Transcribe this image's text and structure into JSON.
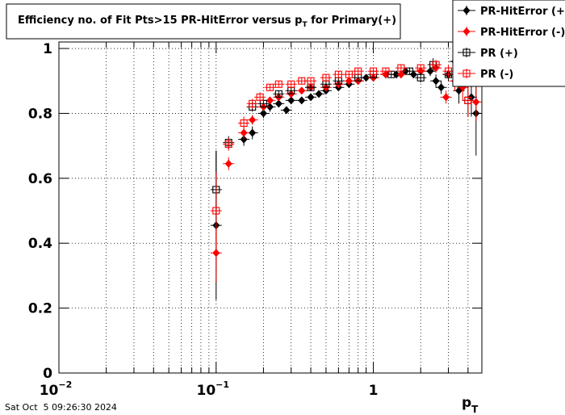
{
  "chart_data": {
    "type": "scatter",
    "title": "Efficiency no. of Fit Pts>15 PR-HitError versus p",
    "title_sub": "T",
    "title_end": " for Primary(+)",
    "x_label": "p",
    "x_label_sub": "T",
    "timestamp": "Sat Oct  5 09:26:30 2024",
    "xscale": "log",
    "xlim": [
      0.01,
      4.9
    ],
    "ylim": [
      0,
      1.02
    ],
    "xticks": [
      {
        "value": 0.01,
        "label": "10",
        "sup": "−2"
      },
      {
        "value": 0.1,
        "label": "10",
        "sup": "−1"
      },
      1
    ],
    "xminor": [
      0.02,
      0.03,
      0.04,
      0.05,
      0.06,
      0.07,
      0.08,
      0.09,
      0.2,
      0.3,
      0.4,
      0.5,
      0.6,
      0.7,
      0.8,
      0.9,
      2,
      3,
      4
    ],
    "yticks": [
      0,
      0.2,
      0.4,
      0.6,
      0.8,
      1
    ],
    "grid": true,
    "legend": "top-right",
    "series": [
      {
        "name": "PR-HitError (+)",
        "color": "#000000",
        "marker": "diamond",
        "x": [
          0.1,
          0.15,
          0.17,
          0.2,
          0.22,
          0.25,
          0.28,
          0.3,
          0.35,
          0.4,
          0.45,
          0.5,
          0.6,
          0.7,
          0.8,
          0.9,
          1.0,
          1.2,
          1.4,
          1.6,
          1.8,
          2.0,
          2.3,
          2.5,
          2.7,
          3.0,
          3.3,
          3.5,
          4.2,
          4.5
        ],
        "values": [
          0.455,
          0.72,
          0.74,
          0.8,
          0.82,
          0.83,
          0.81,
          0.84,
          0.84,
          0.85,
          0.86,
          0.87,
          0.88,
          0.89,
          0.9,
          0.91,
          0.91,
          0.92,
          0.92,
          0.93,
          0.92,
          0.93,
          0.93,
          0.9,
          0.88,
          0.92,
          0.96,
          0.87,
          0.85,
          0.8
        ],
        "errors": [
          0.23,
          0.02,
          0.02,
          0.015,
          0.015,
          0.01,
          0.01,
          0.01,
          0.01,
          0.01,
          0.01,
          0.01,
          0.01,
          0.01,
          0.01,
          0.01,
          0.01,
          0.01,
          0.01,
          0.01,
          0.01,
          0.01,
          0.015,
          0.02,
          0.02,
          0.02,
          0.03,
          0.04,
          0.06,
          0.13
        ]
      },
      {
        "name": "PR-HitError (-)",
        "color": "#ff0000",
        "marker": "diamond",
        "x": [
          0.1,
          0.12,
          0.15,
          0.17,
          0.2,
          0.22,
          0.25,
          0.3,
          0.35,
          0.4,
          0.5,
          0.6,
          0.7,
          0.8,
          1.0,
          1.2,
          1.5,
          2.0,
          2.5,
          2.9,
          3.3,
          3.7,
          4.5
        ],
        "values": [
          0.37,
          0.645,
          0.74,
          0.78,
          0.82,
          0.84,
          0.85,
          0.86,
          0.87,
          0.88,
          0.88,
          0.89,
          0.9,
          0.9,
          0.91,
          0.92,
          0.92,
          0.93,
          0.94,
          0.85,
          0.9,
          0.88,
          0.835
        ],
        "errors": [
          0.09,
          0.02,
          0.02,
          0.015,
          0.015,
          0.01,
          0.01,
          0.01,
          0.01,
          0.01,
          0.01,
          0.01,
          0.01,
          0.01,
          0.01,
          0.01,
          0.01,
          0.01,
          0.015,
          0.02,
          0.03,
          0.04,
          0.06
        ]
      },
      {
        "name": "PR (+)",
        "color": "#000000",
        "marker": "open-square",
        "x": [
          0.1,
          0.12,
          0.17,
          0.2,
          0.25,
          0.3,
          0.4,
          0.5,
          0.6,
          0.8,
          1.0,
          1.3,
          1.7,
          2.0,
          2.4,
          3.0,
          3.5,
          4.0
        ],
        "values": [
          0.565,
          0.71,
          0.82,
          0.83,
          0.86,
          0.87,
          0.88,
          0.89,
          0.9,
          0.91,
          0.92,
          0.92,
          0.93,
          0.91,
          0.95,
          0.92,
          0.91,
          0.84
        ],
        "errors": [
          0.12,
          0.02,
          0.015,
          0.015,
          0.01,
          0.01,
          0.01,
          0.01,
          0.01,
          0.01,
          0.01,
          0.01,
          0.01,
          0.015,
          0.02,
          0.02,
          0.03,
          0.05
        ]
      },
      {
        "name": "PR (-)",
        "color": "#ff0000",
        "marker": "open-square",
        "x": [
          0.1,
          0.12,
          0.15,
          0.17,
          0.19,
          0.22,
          0.25,
          0.3,
          0.35,
          0.4,
          0.5,
          0.6,
          0.7,
          0.8,
          1.0,
          1.2,
          1.5,
          2.0,
          2.5,
          3.0,
          4.0
        ],
        "values": [
          0.5,
          0.705,
          0.77,
          0.83,
          0.85,
          0.88,
          0.89,
          0.89,
          0.9,
          0.9,
          0.91,
          0.92,
          0.92,
          0.93,
          0.93,
          0.93,
          0.94,
          0.94,
          0.95,
          0.93,
          0.84
        ],
        "errors": [
          0.12,
          0.02,
          0.02,
          0.015,
          0.015,
          0.01,
          0.01,
          0.01,
          0.01,
          0.01,
          0.01,
          0.01,
          0.01,
          0.01,
          0.01,
          0.01,
          0.01,
          0.01,
          0.015,
          0.02,
          0.05
        ]
      }
    ]
  }
}
